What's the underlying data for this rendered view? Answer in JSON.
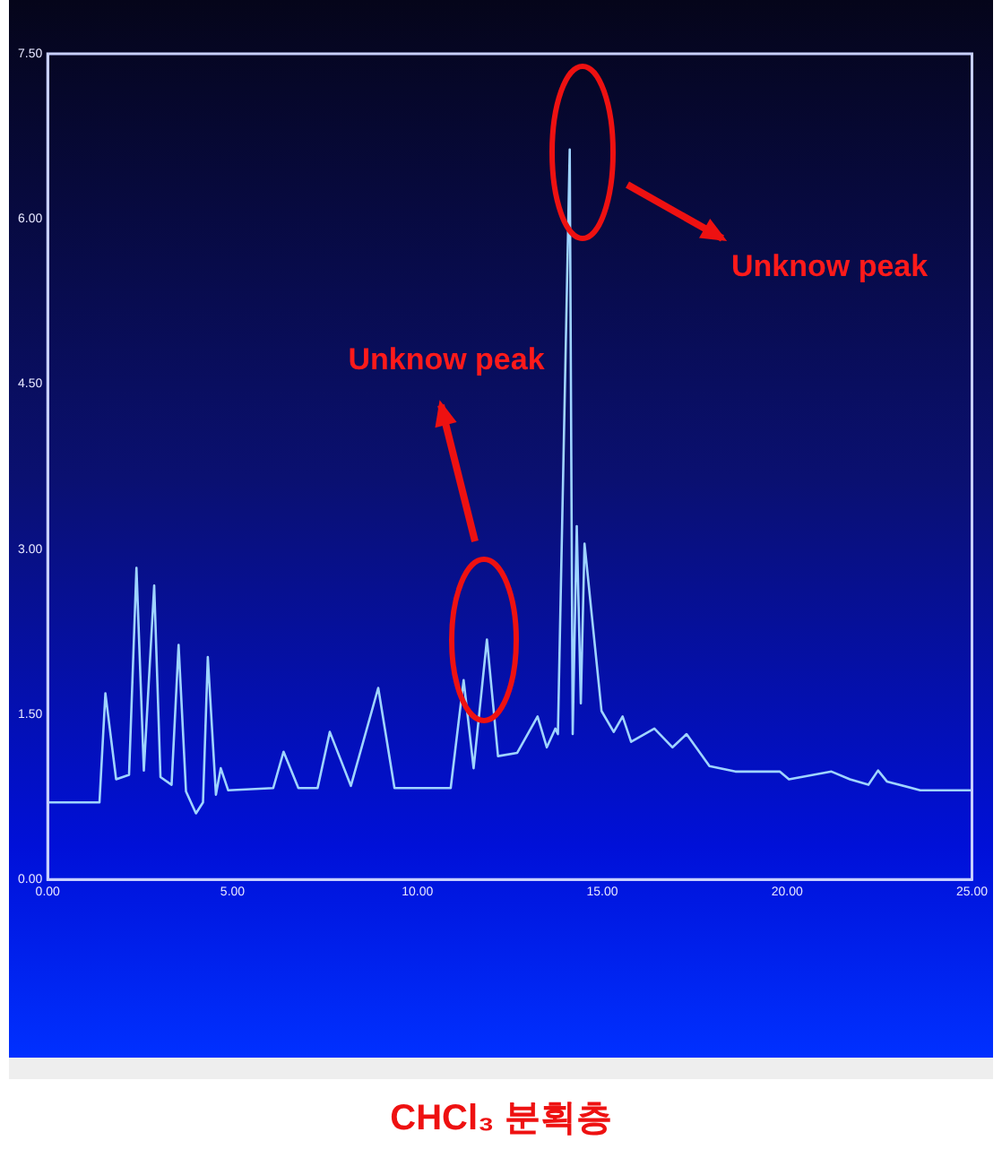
{
  "chart_data": {
    "type": "line",
    "x": [
      0,
      1.4,
      1.56,
      1.85,
      2.2,
      2.4,
      2.6,
      2.88,
      3.05,
      3.35,
      3.54,
      3.74,
      4.01,
      4.2,
      4.33,
      4.55,
      4.68,
      4.88,
      6.1,
      6.38,
      6.78,
      7.3,
      7.63,
      8.2,
      8.94,
      9.38,
      10.9,
      11.25,
      11.52,
      11.88,
      12.18,
      12.7,
      13.25,
      13.5,
      13.73,
      13.8,
      14.12,
      14.2,
      14.31,
      14.42,
      14.52,
      14.98,
      15.31,
      15.55,
      15.78,
      16.41,
      16.9,
      17.28,
      17.9,
      18.6,
      19.8,
      20.05,
      21.2,
      21.7,
      22.2,
      22.46,
      22.7,
      23.6,
      25
    ],
    "series": [
      {
        "color": "#9fd4ff",
        "values": [
          0.7,
          0.7,
          1.69,
          0.91,
          0.95,
          2.83,
          0.99,
          2.67,
          0.93,
          0.86,
          2.13,
          0.8,
          0.6,
          0.7,
          2.02,
          0.77,
          1.01,
          0.81,
          0.83,
          1.16,
          0.83,
          0.83,
          1.34,
          0.85,
          1.74,
          0.83,
          0.83,
          1.81,
          1.01,
          2.18,
          1.12,
          1.15,
          1.48,
          1.2,
          1.37,
          1.32,
          6.63,
          1.32,
          3.21,
          1.6,
          3.05,
          1.53,
          1.34,
          1.48,
          1.25,
          1.37,
          1.2,
          1.32,
          1.03,
          0.98,
          0.98,
          0.91,
          0.98,
          0.91,
          0.86,
          0.99,
          0.89,
          0.81,
          0.81
        ]
      }
    ],
    "xlim": [
      0,
      25
    ],
    "ylim": [
      0,
      7.5
    ],
    "xticks": [
      {
        "value": 0,
        "label": "0.00"
      },
      {
        "value": 5,
        "label": "5.00"
      },
      {
        "value": 10,
        "label": "10.00"
      },
      {
        "value": 15,
        "label": "15.00"
      },
      {
        "value": 20,
        "label": "20.00"
      },
      {
        "value": 25,
        "label": "25.00"
      }
    ],
    "yticks": [
      {
        "value": 0,
        "label": "0.00"
      },
      {
        "value": 1.5,
        "label": "1.50"
      },
      {
        "value": 3,
        "label": "3.00"
      },
      {
        "value": 4.5,
        "label": "4.50"
      },
      {
        "value": 6,
        "label": "6.00"
      },
      {
        "value": 7.5,
        "label": "7.50"
      }
    ],
    "annotations": [
      "Unknow peak",
      "Unknow peak",
      "CHCl₃ 분획층"
    ],
    "grid": false,
    "legend": false,
    "marker": "none",
    "line_style": "solid"
  }
}
